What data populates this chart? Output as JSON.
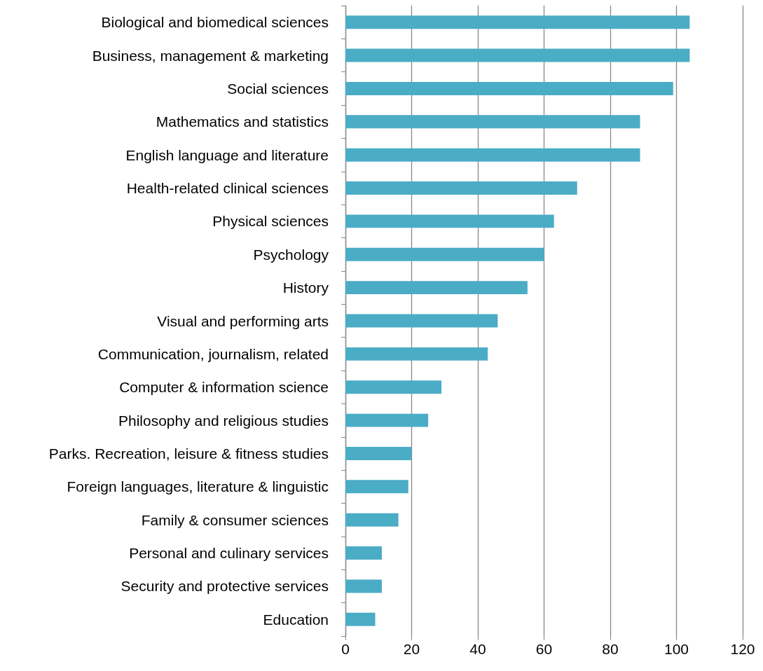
{
  "chart_data": {
    "type": "bar",
    "orientation": "horizontal",
    "categories": [
      "Biological and biomedical sciences",
      "Business, management & marketing",
      "Social sciences",
      "Mathematics and statistics",
      "English language and literature",
      "Health-related clinical sciences",
      "Physical sciences",
      "Psychology",
      "History",
      "Visual and performing arts",
      "Communication, journalism, related",
      "Computer & information science",
      "Philosophy and religious studies",
      "Parks. Recreation, leisure & fitness studies",
      "Foreign languages, literature & linguistic",
      "Family & consumer sciences",
      "Personal and culinary services",
      "Security and protective services",
      "Education"
    ],
    "values": [
      104,
      104,
      99,
      89,
      89,
      70,
      63,
      60,
      55,
      46,
      43,
      29,
      25,
      20,
      19,
      16,
      11,
      11,
      9
    ],
    "color": "#4bacc6",
    "xlim": [
      0,
      120
    ],
    "xticks": [
      0,
      20,
      40,
      60,
      80,
      100,
      120
    ],
    "grid": "x"
  }
}
